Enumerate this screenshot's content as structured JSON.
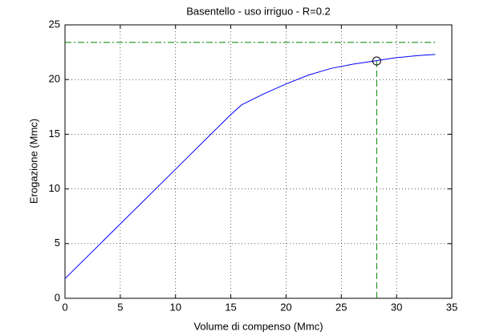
{
  "chart_data": {
    "type": "line",
    "title": "Basentello  -  uso irriguo  -   R=0.2",
    "xlabel": "Volume di compenso (Mmc)",
    "ylabel": "Erogazione (Mmc)",
    "x": [
      0,
      5,
      10,
      15,
      16,
      18,
      20,
      22,
      24,
      26,
      28,
      30,
      32,
      33.5
    ],
    "series": [
      {
        "color": "#0000ff",
        "values": [
          1.8,
          6.8,
          11.8,
          16.8,
          17.7,
          18.7,
          19.6,
          20.4,
          21.0,
          21.4,
          21.7,
          22.0,
          22.2,
          22.3
        ]
      }
    ],
    "target": 23.4,
    "marker": {
      "x": 28.2,
      "y": 21.7
    },
    "ref_color": "#008000",
    "xlim": [
      0,
      35
    ],
    "xticks": [
      0,
      5,
      10,
      15,
      20,
      25,
      30,
      35
    ],
    "ylim": [
      0,
      25
    ],
    "yticks": [
      0,
      5,
      10,
      15,
      20,
      25
    ],
    "grid": true
  }
}
